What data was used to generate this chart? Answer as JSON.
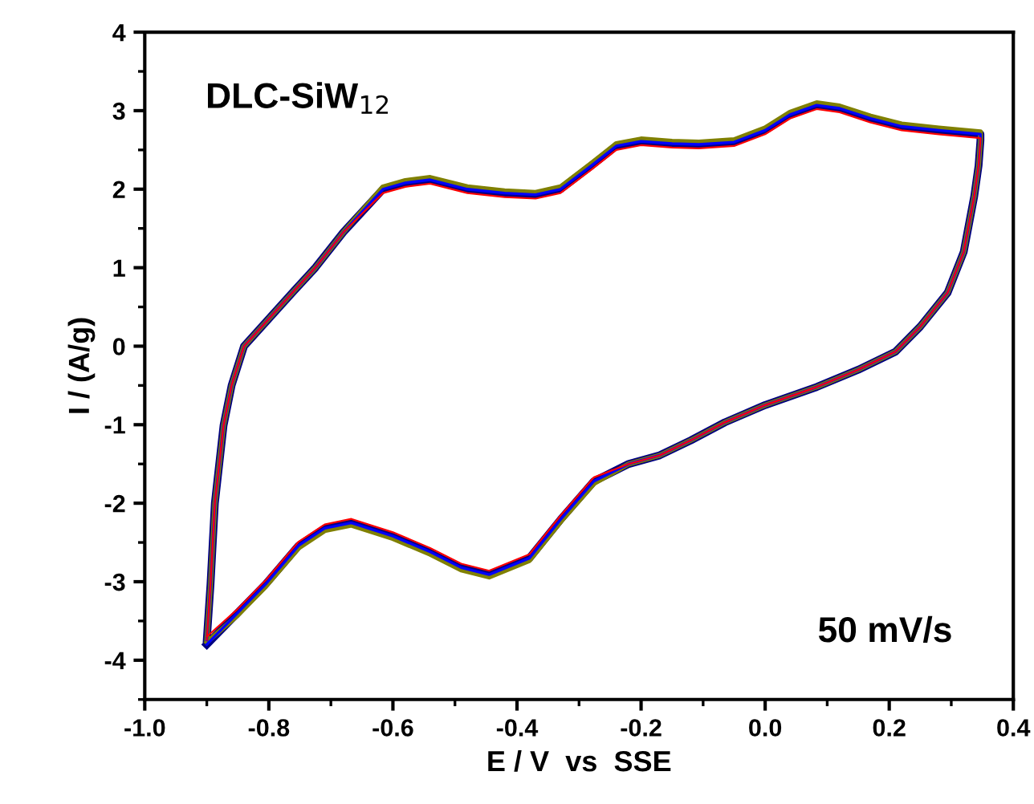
{
  "chart_data": {
    "type": "line",
    "xlabel": "E / V  vs  SSE",
    "ylabel": "I / (A/g)",
    "annotations": [
      "DLC-SiW$_{12}$",
      "50 mV/s"
    ],
    "xlim": [
      -1.0,
      0.4
    ],
    "xticks": [
      {
        "value": -1.0,
        "label": "-1.0"
      },
      {
        "value": -0.8,
        "label": "-0.8"
      },
      {
        "value": -0.6,
        "label": "-0.6"
      },
      {
        "value": -0.4,
        "label": "-0.4"
      },
      {
        "value": -0.2,
        "label": "-0.2"
      },
      {
        "value": 0.0,
        "label": "0.0"
      },
      {
        "value": 0.2,
        "label": "0.2"
      },
      {
        "value": 0.4,
        "label": "0.4"
      }
    ],
    "ylim": [
      -4.5,
      4
    ],
    "yticks": [
      -4,
      -3,
      -2,
      -1,
      0,
      1,
      2,
      3,
      4
    ],
    "grid": false,
    "legend": false,
    "marker": "none",
    "line_style": "solid",
    "x": [
      -0.9,
      -0.894,
      -0.887,
      -0.873,
      -0.86,
      -0.84,
      -0.8,
      -0.76,
      -0.725,
      -0.68,
      -0.616,
      -0.58,
      -0.54,
      -0.48,
      -0.42,
      -0.37,
      -0.33,
      -0.28,
      -0.24,
      -0.2,
      -0.15,
      -0.107,
      -0.05,
      0.0,
      0.04,
      0.083,
      0.12,
      0.17,
      0.22,
      0.28,
      0.347,
      0.347,
      0.344,
      0.337,
      0.32,
      0.294,
      0.25,
      0.21,
      0.15,
      0.083,
      0.0,
      -0.065,
      -0.12,
      -0.17,
      -0.22,
      -0.276,
      -0.33,
      -0.38,
      -0.445,
      -0.49,
      -0.54,
      -0.6,
      -0.667,
      -0.71,
      -0.752,
      -0.805,
      -0.852,
      -0.9
    ],
    "series": [
      {
        "color": "#000080",
        "values": [
          -3.74,
          -3.03,
          -2.0,
          -1.01,
          -0.5,
          0.0,
          0.35,
          0.7,
          1.0,
          1.45,
          2.0,
          2.08,
          2.12,
          2.0,
          1.95,
          1.93,
          2.0,
          2.3,
          2.55,
          2.61,
          2.58,
          2.57,
          2.6,
          2.75,
          2.95,
          3.07,
          3.03,
          2.9,
          2.8,
          2.75,
          2.7,
          2.62,
          2.3,
          1.91,
          1.2,
          0.68,
          0.25,
          -0.07,
          -0.3,
          -0.52,
          -0.75,
          -0.97,
          -1.2,
          -1.39,
          -1.5,
          -1.72,
          -2.21,
          -2.7,
          -2.91,
          -2.82,
          -2.62,
          -2.42,
          -2.25,
          -2.32,
          -2.54,
          -3.03,
          -3.41,
          -3.8
        ]
      },
      {
        "color": "#808000",
        "values": [
          -3.74,
          -3.03,
          -2.0,
          -1.01,
          -0.5,
          0.0,
          0.35,
          0.7,
          1.0,
          1.45,
          2.03,
          2.11,
          2.15,
          2.03,
          1.98,
          1.96,
          2.03,
          2.33,
          2.58,
          2.64,
          2.61,
          2.6,
          2.63,
          2.78,
          2.98,
          3.1,
          3.06,
          2.93,
          2.83,
          2.78,
          2.73,
          2.62,
          2.3,
          1.91,
          1.2,
          0.68,
          0.25,
          -0.07,
          -0.3,
          -0.52,
          -0.75,
          -0.97,
          -1.2,
          -1.39,
          -1.5,
          -1.75,
          -2.24,
          -2.73,
          -2.94,
          -2.85,
          -2.65,
          -2.45,
          -2.28,
          -2.35,
          -2.57,
          -3.06,
          -3.44,
          -3.77
        ]
      },
      {
        "color": "#0000ff",
        "values": [
          -3.74,
          -3.03,
          -2.0,
          -1.01,
          -0.5,
          0.0,
          0.35,
          0.7,
          1.0,
          1.45,
          2.0,
          2.08,
          2.12,
          2.0,
          1.95,
          1.93,
          2.0,
          2.3,
          2.55,
          2.61,
          2.58,
          2.57,
          2.6,
          2.75,
          2.95,
          3.07,
          3.03,
          2.9,
          2.8,
          2.75,
          2.7,
          2.62,
          2.3,
          1.91,
          1.2,
          0.68,
          0.25,
          -0.07,
          -0.3,
          -0.52,
          -0.75,
          -0.97,
          -1.2,
          -1.39,
          -1.5,
          -1.72,
          -2.21,
          -2.7,
          -2.91,
          -2.82,
          -2.62,
          -2.42,
          -2.25,
          -2.32,
          -2.54,
          -3.03,
          -3.41,
          -3.8
        ]
      },
      {
        "color": "#ff0000",
        "values": [
          -3.74,
          -3.03,
          -2.0,
          -1.01,
          -0.5,
          0.0,
          0.35,
          0.7,
          1.0,
          1.45,
          1.95,
          2.03,
          2.07,
          1.95,
          1.9,
          1.88,
          1.95,
          2.25,
          2.5,
          2.56,
          2.53,
          2.52,
          2.55,
          2.7,
          2.9,
          3.02,
          2.98,
          2.85,
          2.75,
          2.7,
          2.65,
          2.62,
          2.3,
          1.91,
          1.2,
          0.68,
          0.25,
          -0.07,
          -0.3,
          -0.52,
          -0.75,
          -0.97,
          -1.2,
          -1.39,
          -1.5,
          -1.67,
          -2.16,
          -2.65,
          -2.86,
          -2.77,
          -2.57,
          -2.37,
          -2.2,
          -2.27,
          -2.49,
          -2.98,
          -3.36,
          -3.7
        ]
      }
    ]
  }
}
